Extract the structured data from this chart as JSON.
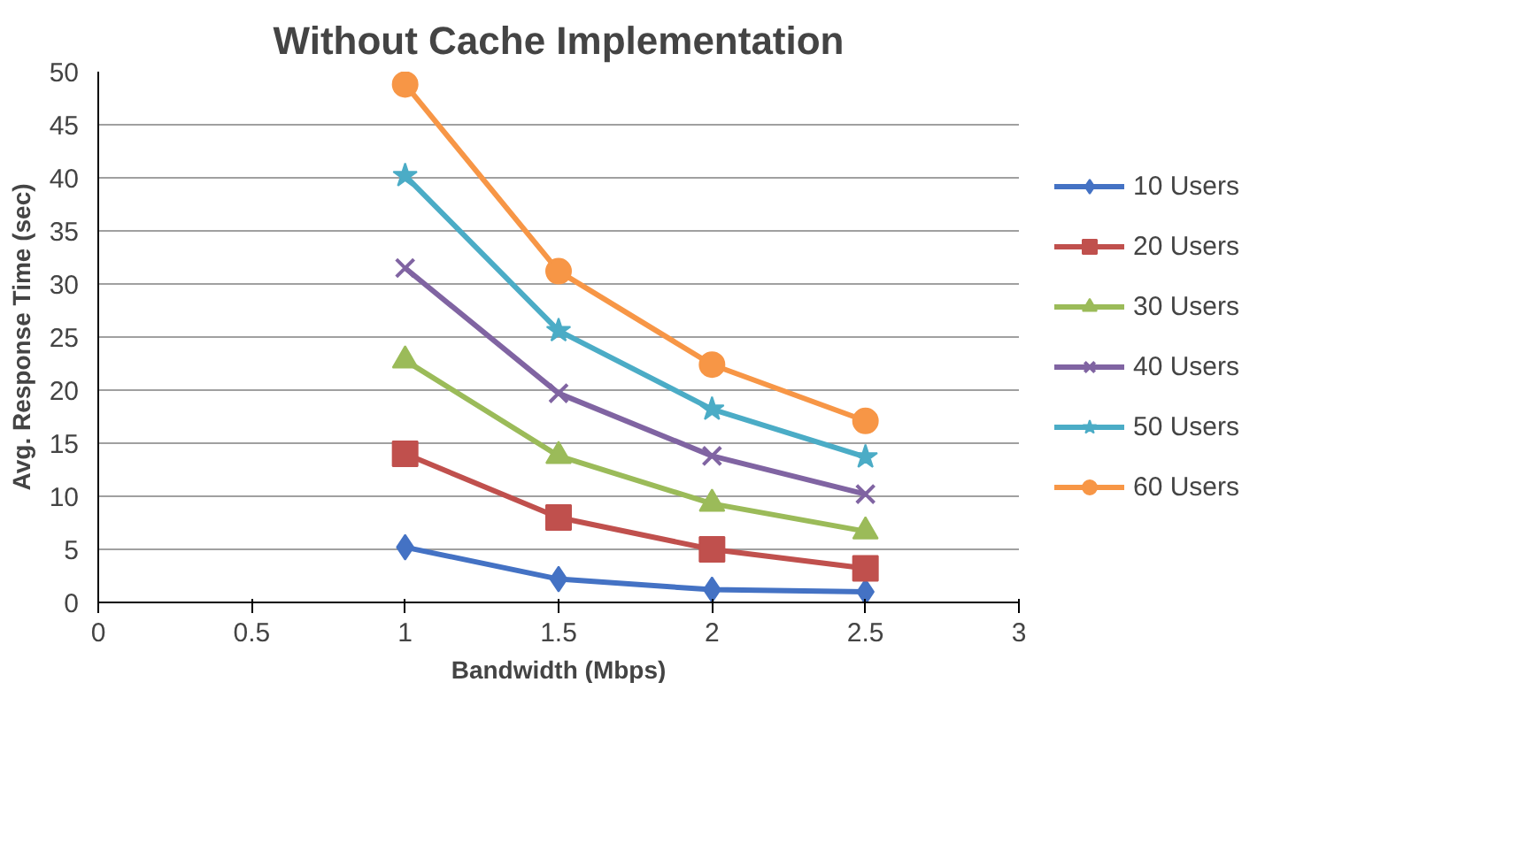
{
  "chart_data": {
    "type": "line",
    "title": "Without Cache Implementation",
    "xlabel": "Bandwidth (Mbps)",
    "ylabel": "Avg. Response Time (sec)",
    "x": [
      1,
      1.5,
      2,
      2.5
    ],
    "xlim": [
      0,
      3
    ],
    "xticks": [
      0,
      0.5,
      1,
      1.5,
      2,
      2.5,
      3
    ],
    "ylim": [
      0,
      50
    ],
    "yticks": [
      0,
      5,
      10,
      15,
      20,
      25,
      30,
      35,
      40,
      45,
      50
    ],
    "grid": "y",
    "legend": "right",
    "line_style": "solid",
    "series": [
      {
        "name": "10 Users",
        "color": "#4472c4",
        "marker": "diamond",
        "values": [
          5.2,
          2.2,
          1.2,
          1.0
        ]
      },
      {
        "name": "20 Users",
        "color": "#c0504d",
        "marker": "square",
        "values": [
          14,
          8,
          5,
          3.2
        ]
      },
      {
        "name": "30 Users",
        "color": "#9bbb59",
        "marker": "triangle",
        "values": [
          22.8,
          13.8,
          9.3,
          6.7
        ]
      },
      {
        "name": "40 Users",
        "color": "#8064a2",
        "marker": "cross",
        "values": [
          31.5,
          19.7,
          13.8,
          10.2
        ]
      },
      {
        "name": "50 Users",
        "color": "#4bacc6",
        "marker": "star",
        "values": [
          40.2,
          25.6,
          18.2,
          13.7
        ]
      },
      {
        "name": "60 Users",
        "color": "#f79646",
        "marker": "circle",
        "values": [
          48.8,
          31.2,
          22.4,
          17.1
        ]
      }
    ]
  }
}
